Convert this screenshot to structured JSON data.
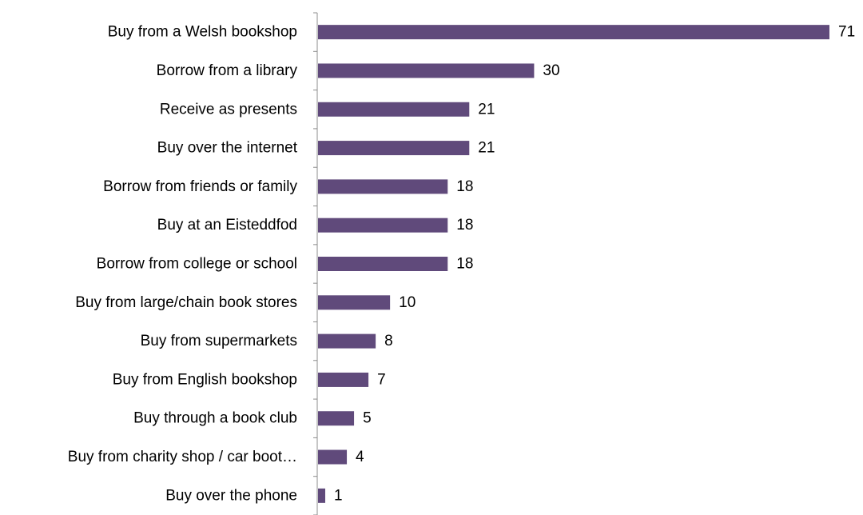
{
  "chart_data": {
    "type": "bar",
    "orientation": "horizontal",
    "categories": [
      "Buy from a Welsh bookshop",
      "Borrow from a library",
      "Receive as presents",
      "Buy over the internet",
      "Borrow from friends or family",
      "Buy at an Eisteddfod",
      "Borrow from college or school",
      "Buy from large/chain book stores",
      "Buy from supermarkets",
      "Buy from English bookshop",
      "Buy through a book club",
      "Buy from charity shop / car boot…",
      "Buy over the phone"
    ],
    "values": [
      71,
      30,
      21,
      21,
      18,
      18,
      18,
      10,
      8,
      7,
      5,
      4,
      1
    ],
    "title": "",
    "xlabel": "",
    "ylabel": "",
    "xlim": [
      0,
      71
    ],
    "grid": false,
    "legend": "none",
    "data_labels": true,
    "bar_color": "#604a7b"
  }
}
